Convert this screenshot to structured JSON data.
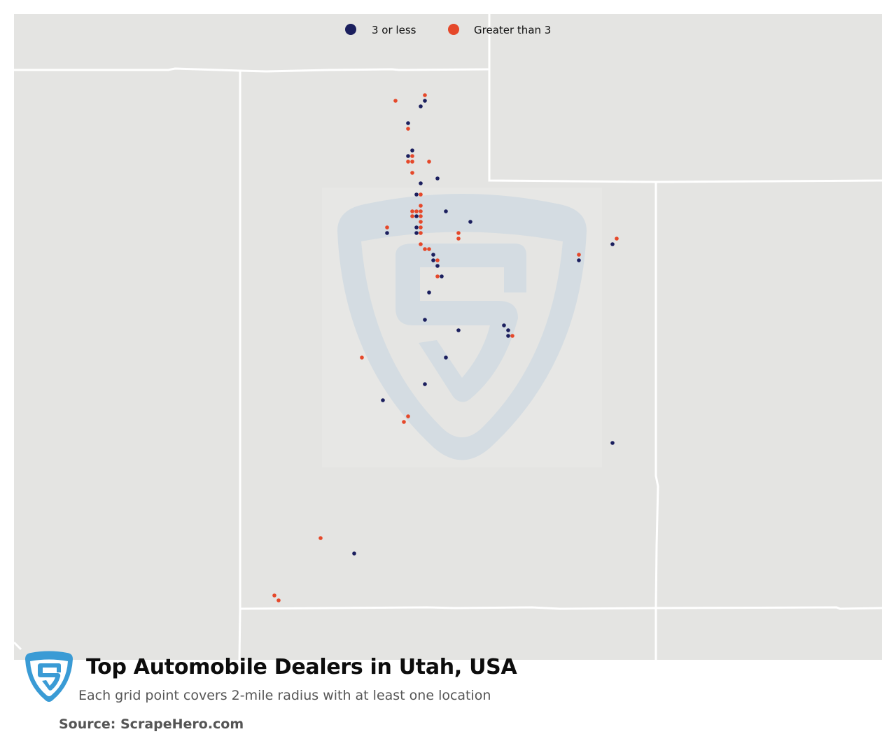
{
  "legend": {
    "items": [
      {
        "label": "3 or less",
        "color": "#1b1f5e"
      },
      {
        "label": "Greater than 3",
        "color": "#e5482a"
      }
    ]
  },
  "footer": {
    "title": "Top Automobile Dealers in Utah, USA",
    "subtitle": "Each grid point covers 2-mile radius with at least one location",
    "source": "Source: ScrapeHero.com"
  },
  "colors": {
    "land": "#e4e4e2",
    "borders": "#ffffff",
    "low": "#1b1f5e",
    "high": "#e5482a",
    "watermark": "#cfdbe3",
    "logo": "#3a9bd5"
  },
  "icons": [
    "scrapehero-shield-logo",
    "scrapehero-watermark"
  ]
}
